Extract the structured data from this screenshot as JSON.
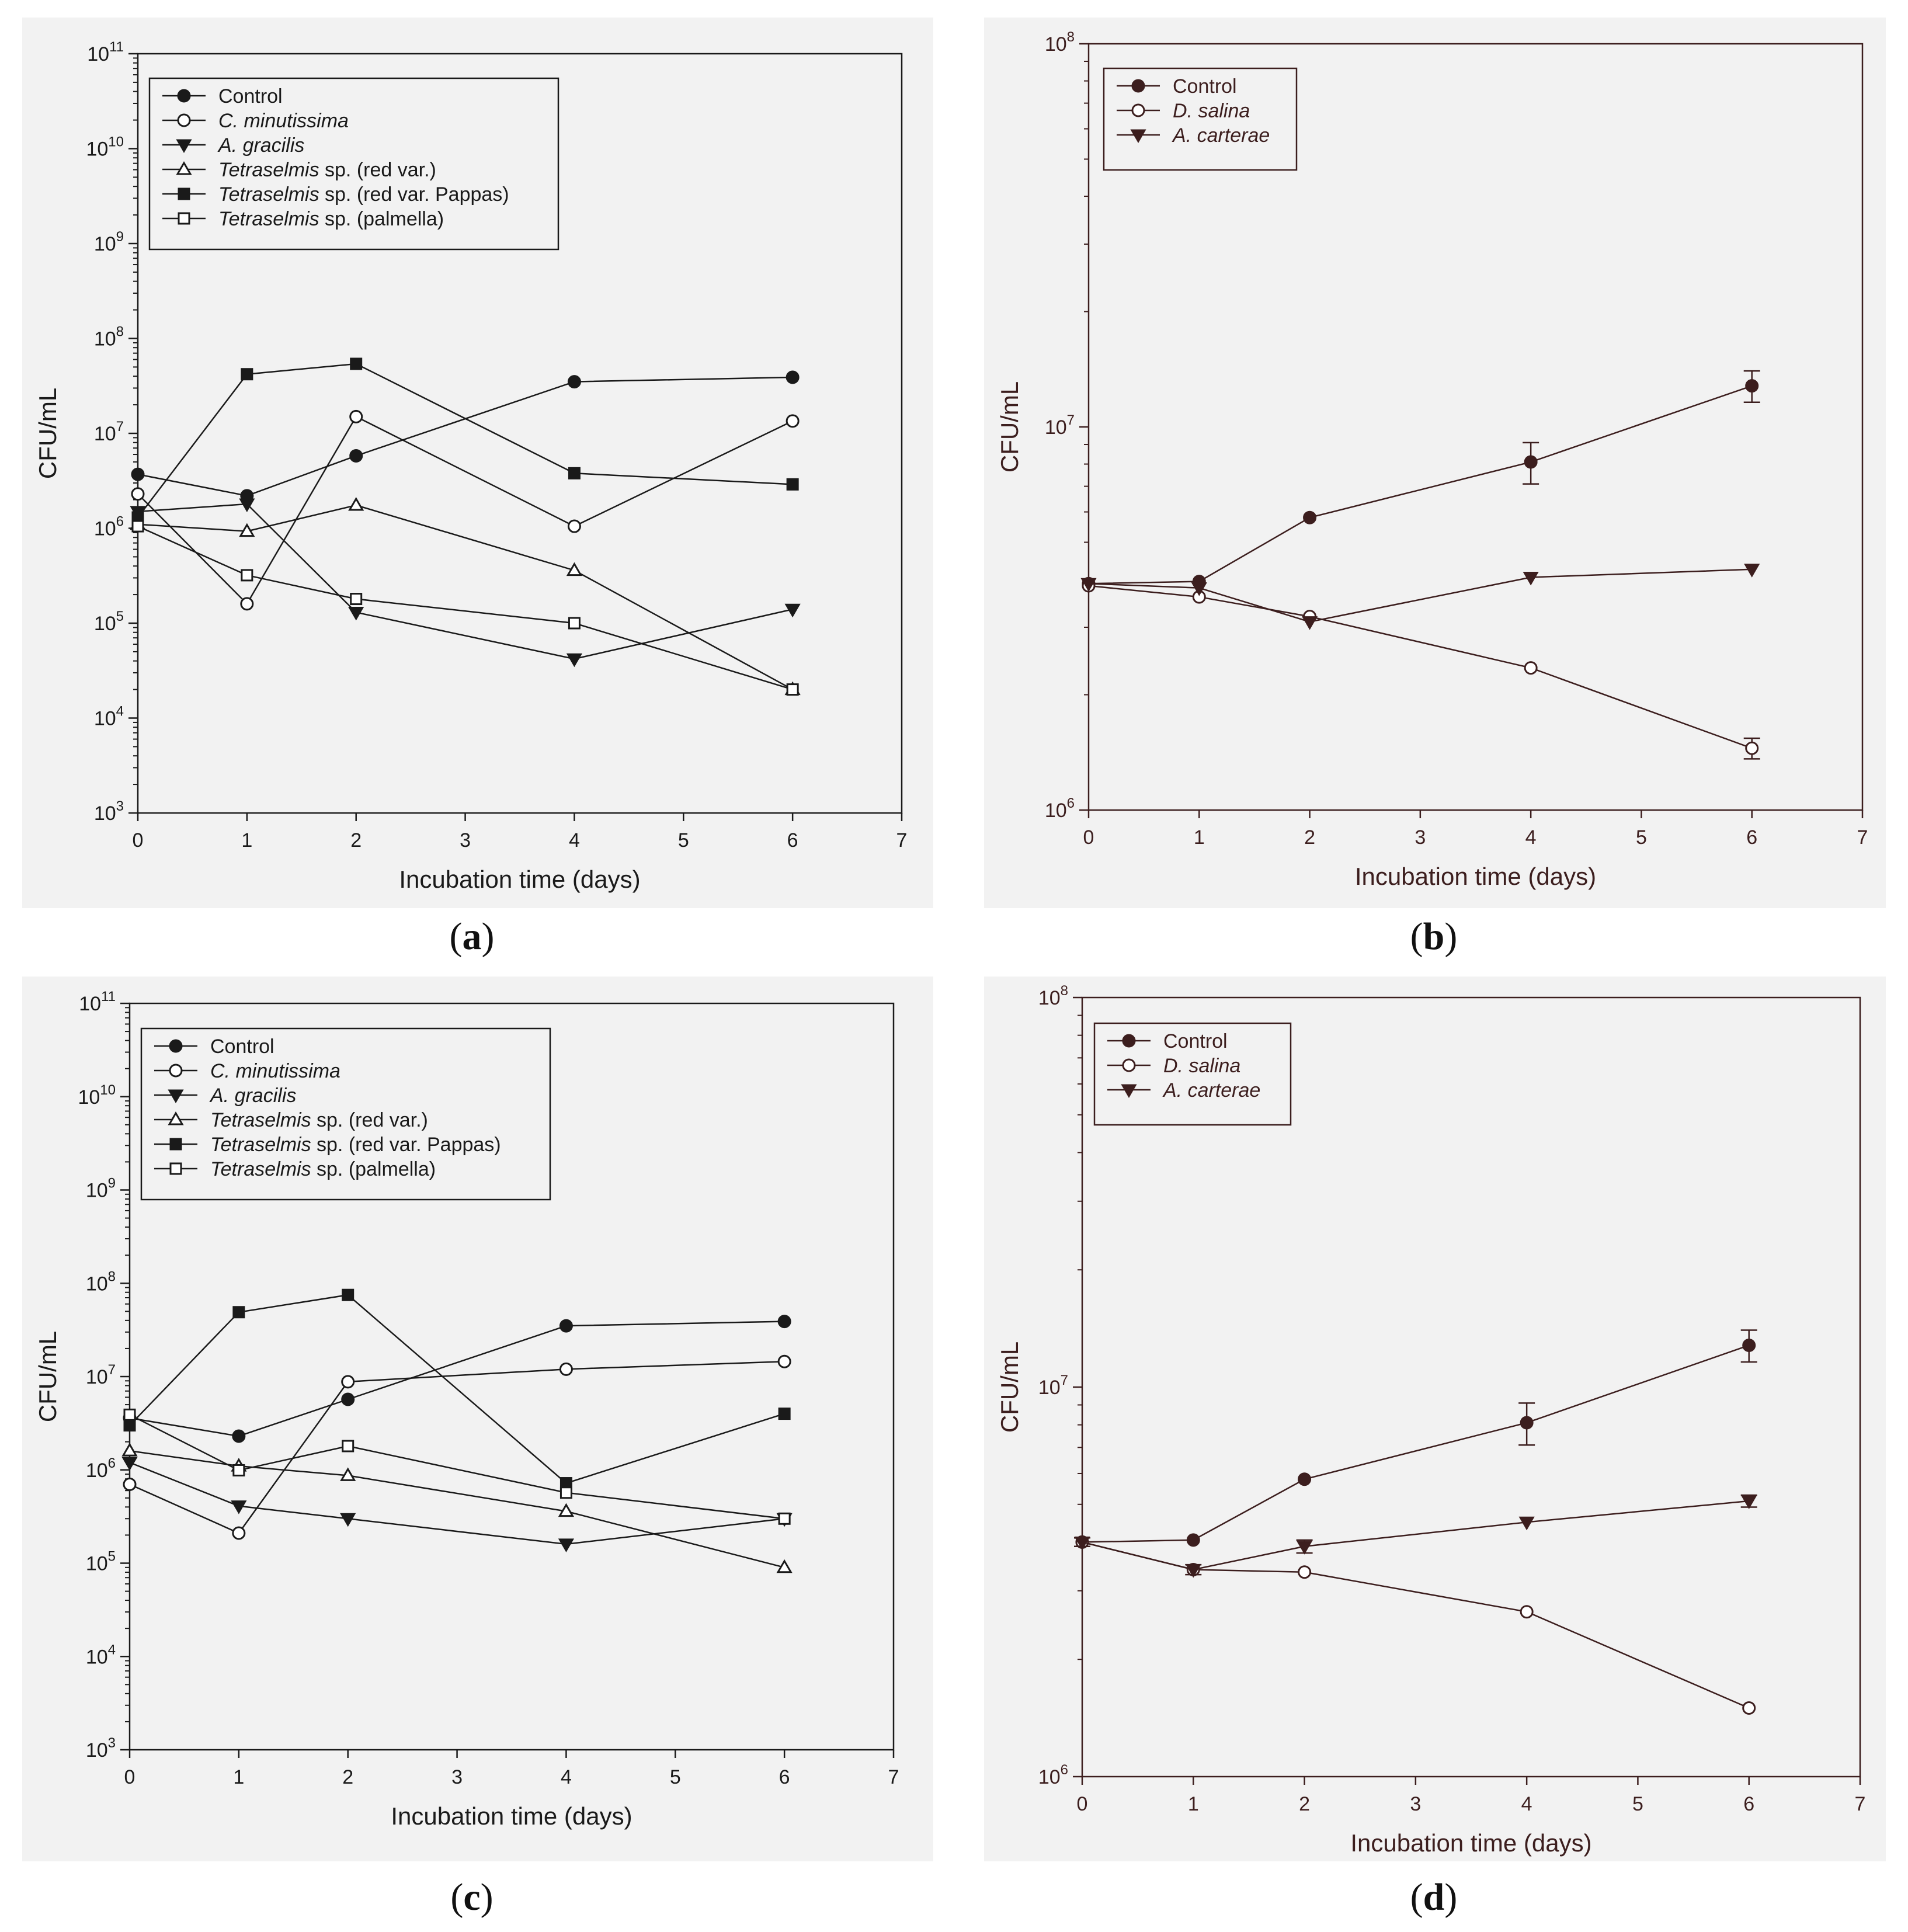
{
  "figure": {
    "panel_labels": [
      "(a)",
      "(b)",
      "(c)",
      "(d)"
    ]
  },
  "chart_data": [
    {
      "panel": "(a)",
      "type": "line",
      "yscale": "log",
      "xlabel": "Incubation time (days)",
      "ylabel": "CFU/mL",
      "xlim": [
        0,
        7
      ],
      "ylim": [
        1000,
        100000000000
      ],
      "xticks": [
        0,
        1,
        2,
        3,
        4,
        5,
        6,
        7
      ],
      "ytick_exponents": [
        3,
        4,
        5,
        6,
        7,
        8,
        9,
        10,
        11
      ],
      "legend_location": "top-left",
      "line_color": "#1a1a1a",
      "x": [
        0,
        1,
        2,
        4,
        6
      ],
      "series": [
        {
          "name": "Control",
          "italic": "",
          "suffix": "Control",
          "marker": "circle-filled",
          "values": [
            3700000,
            2200000,
            5800000,
            35000000,
            39000000
          ]
        },
        {
          "name": "C. minutissima",
          "italic": "C. minutissima",
          "suffix": "",
          "marker": "circle-open",
          "values": [
            2300000,
            160000,
            15000000,
            1050000,
            13500000
          ]
        },
        {
          "name": "A. gracilis",
          "italic": "A. gracilis",
          "suffix": "",
          "marker": "triangle-down-filled",
          "values": [
            1500000,
            1800000,
            130000,
            42000,
            140000
          ]
        },
        {
          "name": "Tetraselmis sp. (red var.)",
          "italic": "Tetraselmis",
          "suffix": " sp. (red var.)",
          "marker": "triangle-up-open",
          "values": [
            1100000,
            930000,
            1750000,
            360000,
            20000
          ]
        },
        {
          "name": "Tetraselmis sp. (red var. Pappas)",
          "italic": "Tetraselmis",
          "suffix": " sp. (red var. Pappas)",
          "marker": "square-filled",
          "values": [
            1300000,
            42000000,
            54000000,
            3800000,
            2900000
          ]
        },
        {
          "name": "Tetraselmis sp. (palmella)",
          "italic": "Tetraselmis",
          "suffix": " sp. (palmella)",
          "marker": "square-open",
          "values": [
            1050000,
            320000,
            180000,
            100000,
            20000
          ]
        }
      ]
    },
    {
      "panel": "(b)",
      "type": "line",
      "yscale": "log",
      "xlabel": "Incubation time (days)",
      "ylabel": "CFU/mL",
      "xlim": [
        0,
        7
      ],
      "ylim": [
        1000000,
        100000000
      ],
      "xticks": [
        0,
        1,
        2,
        3,
        4,
        5,
        6,
        7
      ],
      "ytick_exponents": [
        6,
        7,
        8
      ],
      "legend_location": "top-left",
      "line_color": "#3c1e1e",
      "x": [
        0,
        1,
        2,
        4,
        6
      ],
      "series": [
        {
          "name": "Control",
          "italic": "",
          "suffix": "Control",
          "marker": "circle-filled",
          "values": [
            3900000,
            3950000,
            5800000,
            8100000,
            12800000
          ],
          "errors": [
            0,
            0,
            0,
            1000000,
            1200000
          ]
        },
        {
          "name": "D. salina",
          "italic": "D. salina",
          "suffix": "",
          "marker": "circle-open",
          "values": [
            3850000,
            3600000,
            3200000,
            2350000,
            1450000
          ],
          "errors": [
            0,
            0,
            0,
            0,
            90000
          ]
        },
        {
          "name": "A. carterae",
          "italic": "A. carterae",
          "suffix": "",
          "marker": "triangle-down-filled",
          "values": [
            3900000,
            3800000,
            3100000,
            4050000,
            4250000
          ],
          "errors": [
            0,
            0,
            0,
            0,
            0
          ]
        }
      ]
    },
    {
      "panel": "(c)",
      "type": "line",
      "yscale": "log",
      "xlabel": "Incubation time (days)",
      "ylabel": "CFU/mL",
      "xlim": [
        0,
        7
      ],
      "ylim": [
        1000,
        100000000000
      ],
      "xticks": [
        0,
        1,
        2,
        3,
        4,
        5,
        6,
        7
      ],
      "ytick_exponents": [
        3,
        4,
        5,
        6,
        7,
        8,
        9,
        10,
        11
      ],
      "legend_location": "top-left",
      "line_color": "#1a1a1a",
      "x": [
        0,
        1,
        2,
        4,
        6
      ],
      "series": [
        {
          "name": "Control",
          "italic": "",
          "suffix": "Control",
          "marker": "circle-filled",
          "values": [
            3600000,
            2300000,
            5700000,
            35000000,
            39000000
          ]
        },
        {
          "name": "C. minutissima",
          "italic": "C. minutissima",
          "suffix": "",
          "marker": "circle-open",
          "values": [
            700000,
            210000,
            8800000,
            12000000,
            14500000
          ]
        },
        {
          "name": "A. gracilis",
          "italic": "A. gracilis",
          "suffix": "",
          "marker": "triangle-down-filled",
          "values": [
            1200000,
            410000,
            300000,
            160000,
            300000
          ]
        },
        {
          "name": "Tetraselmis sp. (red var.)",
          "italic": "Tetraselmis",
          "suffix": " sp. (red var.)",
          "marker": "triangle-up-open",
          "values": [
            1600000,
            1100000,
            870000,
            360000,
            90000
          ]
        },
        {
          "name": "Tetraselmis sp. (red var. Pappas)",
          "italic": "Tetraselmis",
          "suffix": " sp. (red var. Pappas)",
          "marker": "square-filled",
          "values": [
            3000000,
            49000000,
            75000000,
            720000,
            4000000
          ]
        },
        {
          "name": "Tetraselmis sp. (palmella)",
          "italic": "Tetraselmis",
          "suffix": " sp. (palmella)",
          "marker": "square-open",
          "values": [
            3900000,
            990000,
            1800000,
            570000,
            300000
          ]
        }
      ]
    },
    {
      "panel": "(d)",
      "type": "line",
      "yscale": "log",
      "xlabel": "Incubation time (days)",
      "ylabel": "CFU/mL",
      "xlim": [
        0,
        7
      ],
      "ylim": [
        1000000,
        100000000
      ],
      "xticks": [
        0,
        1,
        2,
        3,
        4,
        5,
        6,
        7
      ],
      "ytick_exponents": [
        6,
        7,
        8
      ],
      "legend_location": "top-left",
      "line_color": "#3c1e1e",
      "x": [
        0,
        1,
        2,
        4,
        6
      ],
      "series": [
        {
          "name": "Control",
          "italic": "",
          "suffix": "Control",
          "marker": "circle-filled",
          "values": [
            4000000,
            4050000,
            5800000,
            8100000,
            12800000
          ],
          "errors": [
            0,
            0,
            0,
            1000000,
            1200000
          ]
        },
        {
          "name": "D. salina",
          "italic": "D. salina",
          "suffix": "",
          "marker": "circle-open",
          "values": [
            4000000,
            3400000,
            3350000,
            2650000,
            1500000
          ],
          "errors": [
            0,
            0,
            0,
            0,
            0
          ]
        },
        {
          "name": "A. carterae",
          "italic": "A. carterae",
          "suffix": "",
          "marker": "triangle-down-filled",
          "values": [
            4000000,
            3400000,
            3900000,
            4500000,
            5100000
          ],
          "errors": [
            100000,
            100000,
            150000,
            0,
            180000
          ]
        }
      ]
    }
  ]
}
